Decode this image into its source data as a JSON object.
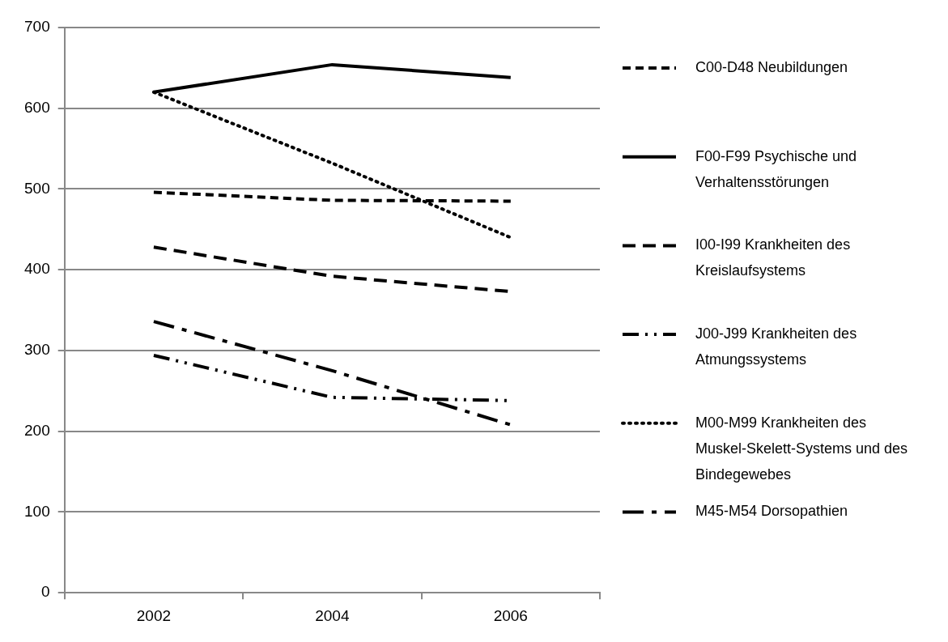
{
  "chart_data": {
    "type": "line",
    "categories": [
      "2002",
      "2004",
      "2006"
    ],
    "series": [
      {
        "name": "C00-D48 Neubildungen",
        "color": "#000000",
        "line_style": "dashed",
        "values": [
          496,
          486,
          485
        ]
      },
      {
        "name": "F00-F99 Psychische und Verhaltensstörungen",
        "color": "#000000",
        "line_style": "solid",
        "values": [
          620,
          654,
          638
        ]
      },
      {
        "name": "I00-I99 Krankheiten des Kreislaufsystems",
        "color": "#000000",
        "line_style": "dashed",
        "values": [
          428,
          392,
          373
        ]
      },
      {
        "name": "J00-J99 Krankheiten des Atmungssystems",
        "color": "#000000",
        "line_style": "dashed",
        "values": [
          294,
          242,
          238
        ]
      },
      {
        "name": "M00-M99 Krankheiten des Muskel-Skelett-Systems und des Bindegewebes",
        "color": "#000000",
        "line_style": "dotted",
        "values": [
          620,
          532,
          440
        ]
      },
      {
        "name": "M45-M54 Dorsopathien",
        "color": "#000000",
        "line_style": "dashed",
        "values": [
          336,
          275,
          208
        ]
      }
    ],
    "ylim": [
      0,
      700
    ],
    "yticks": [
      0,
      100,
      200,
      300,
      400,
      500,
      600,
      700
    ],
    "grid": "y",
    "legend": "right",
    "marker": "none"
  }
}
